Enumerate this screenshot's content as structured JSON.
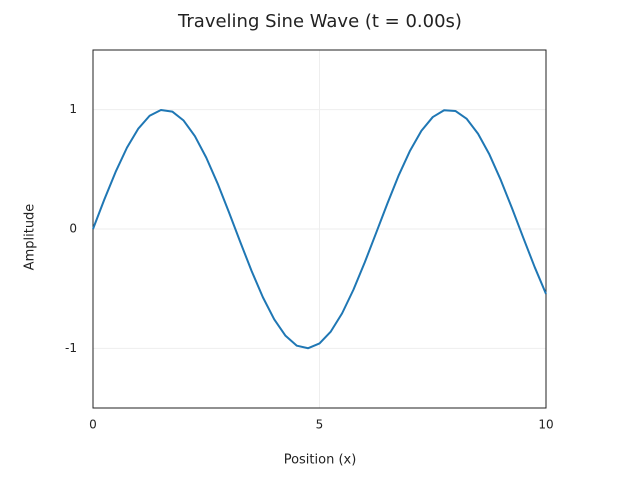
{
  "chart_data": {
    "type": "line",
    "title": "Traveling Sine Wave (t = 0.00s)",
    "x_label": "Position (x)",
    "y_label": "Amplitude",
    "x": [
      0,
      0.25,
      0.5,
      0.75,
      1,
      1.25,
      1.5,
      1.75,
      2,
      2.25,
      2.5,
      2.75,
      3,
      3.25,
      3.5,
      3.75,
      4,
      4.25,
      4.5,
      4.75,
      5,
      5.25,
      5.5,
      5.75,
      6,
      6.25,
      6.5,
      6.75,
      7,
      7.25,
      7.5,
      7.75,
      8,
      8.25,
      8.5,
      8.75,
      9,
      9.25,
      9.5,
      9.75,
      10
    ],
    "values": [
      0,
      0.247,
      0.479,
      0.682,
      0.841,
      0.949,
      0.997,
      0.984,
      0.909,
      0.778,
      0.598,
      0.382,
      0.141,
      -0.108,
      -0.351,
      -0.572,
      -0.757,
      -0.895,
      -0.978,
      -0.999,
      -0.959,
      -0.859,
      -0.706,
      -0.508,
      -0.279,
      -0.033,
      0.215,
      0.451,
      0.657,
      0.823,
      0.938,
      0.995,
      0.989,
      0.923,
      0.798,
      0.625,
      0.412,
      0.174,
      -0.075,
      -0.319,
      -0.544
    ],
    "color": "#1f77b4",
    "xlim": [
      0,
      10
    ],
    "xticks": [
      0,
      5,
      10
    ],
    "ylim": [
      -1.5,
      1.5
    ],
    "yticks": [
      -1,
      0,
      1
    ],
    "grid": true
  }
}
